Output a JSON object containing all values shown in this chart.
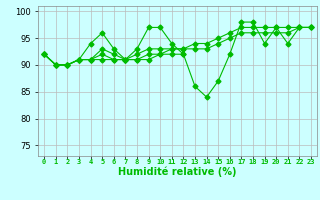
{
  "xlabel": "Humidité relative (%)",
  "x": [
    0,
    1,
    2,
    3,
    4,
    5,
    6,
    7,
    8,
    9,
    10,
    11,
    12,
    13,
    14,
    15,
    16,
    17,
    18,
    19,
    20,
    21,
    22,
    23
  ],
  "line_jagged_full": [
    92,
    90,
    90,
    91,
    94,
    96,
    93,
    91,
    93,
    97,
    97,
    94,
    92,
    null,
    null,
    null,
    null,
    null,
    null,
    null,
    null,
    null,
    null,
    null
  ],
  "line_dip": [
    92,
    90,
    90,
    91,
    91,
    91,
    91,
    91,
    91,
    91,
    92,
    92,
    92,
    86,
    84,
    87,
    92,
    98,
    98,
    94,
    97,
    94,
    97,
    97
  ],
  "line_smooth_low": [
    92,
    90,
    90,
    91,
    91,
    92,
    91,
    91,
    91,
    92,
    92,
    93,
    93,
    93,
    93,
    94,
    95,
    96,
    96,
    96,
    96,
    96,
    97,
    97
  ],
  "line_smooth_high": [
    92,
    90,
    90,
    91,
    91,
    93,
    92,
    91,
    92,
    93,
    93,
    93,
    93,
    94,
    94,
    95,
    96,
    97,
    97,
    97,
    97,
    97,
    97,
    97
  ],
  "line_color": "#00bb00",
  "bg_color": "#ccffff",
  "grid_color": "#bbbbbb",
  "ylim": [
    73,
    101
  ],
  "yticks": [
    75,
    80,
    85,
    90,
    95,
    100
  ],
  "xticks": [
    0,
    1,
    2,
    3,
    4,
    5,
    6,
    7,
    8,
    9,
    10,
    11,
    12,
    13,
    14,
    15,
    16,
    17,
    18,
    19,
    20,
    21,
    22,
    23
  ],
  "figsize": [
    3.2,
    2.0
  ],
  "dpi": 100
}
